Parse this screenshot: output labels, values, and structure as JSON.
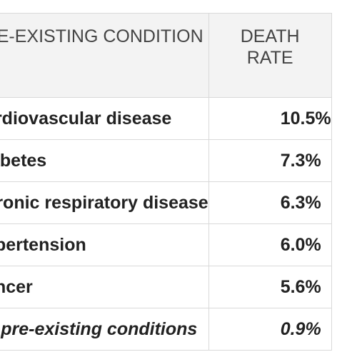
{
  "table": {
    "headers": {
      "condition": "PRE-EXISTING CONDITION",
      "rate_line1": "DEATH",
      "rate_line2": "RATE"
    },
    "rows": [
      {
        "condition": "Cardiovascular disease",
        "rate": "10.5%"
      },
      {
        "condition": "Diabetes",
        "rate": "7.3%"
      },
      {
        "condition": "Chronic respiratory disease",
        "rate": "6.3%"
      },
      {
        "condition": "Hypertension",
        "rate": "6.0%"
      },
      {
        "condition": "Cancer",
        "rate": "5.6%"
      },
      {
        "condition": "No pre-existing conditions",
        "rate": "0.9%"
      }
    ]
  }
}
